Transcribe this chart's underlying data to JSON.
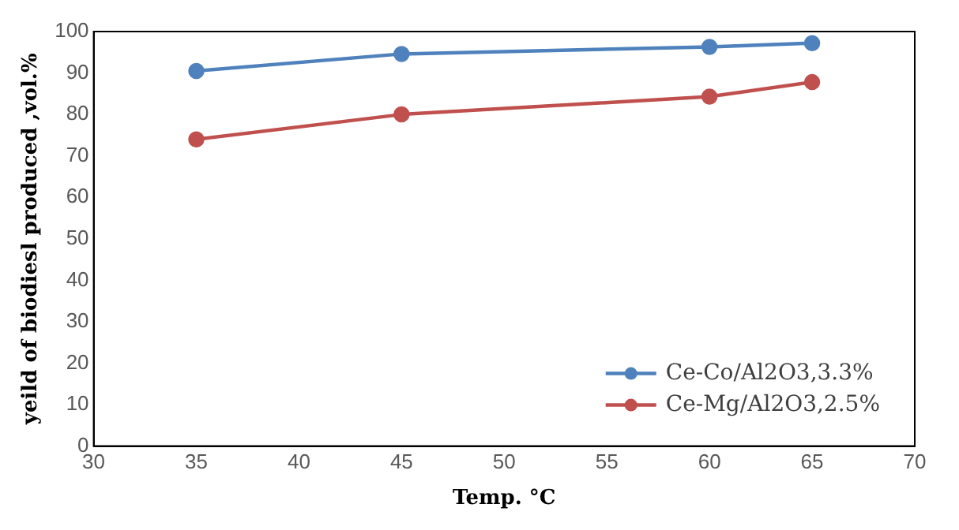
{
  "chart_data": {
    "type": "line",
    "xlabel": "Temp. °C",
    "ylabel": "yeild of biodiesl produced ,vol.%",
    "x": [
      35,
      45,
      60,
      65
    ],
    "series": [
      {
        "name": "Ce-Co/Al2O3,3.3%",
        "color": "#4f81bd",
        "values": [
          90.5,
          94.6,
          96.3,
          97.2
        ]
      },
      {
        "name": "Ce-Mg/Al2O3,2.5%",
        "color": "#c0504d",
        "values": [
          74,
          80,
          84.3,
          87.8
        ]
      }
    ],
    "xlim": [
      30,
      70
    ],
    "xticks": [
      30,
      35,
      40,
      45,
      50,
      55,
      60,
      65,
      70
    ],
    "ylim": [
      0,
      100
    ],
    "yticks": [
      0,
      10,
      20,
      30,
      40,
      50,
      60,
      70,
      80,
      90,
      100
    ],
    "grid": false,
    "legend": "bottom right",
    "marker": "circle",
    "line_style": "solid"
  }
}
